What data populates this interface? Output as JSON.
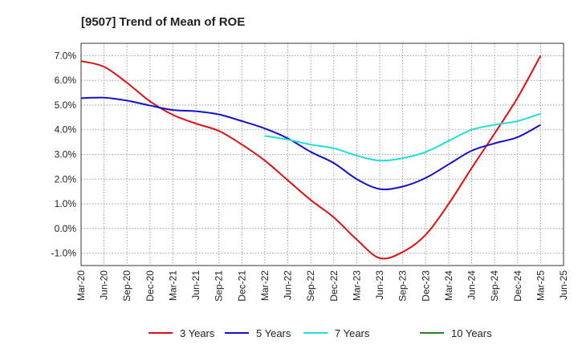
{
  "chart_data": {
    "type": "line",
    "title": "[9507]  Trend of Mean of ROE",
    "xlabel": "",
    "ylabel": "",
    "ylim": [
      -1.5,
      7.5
    ],
    "yticks": [
      -1.0,
      0.0,
      1.0,
      2.0,
      3.0,
      4.0,
      5.0,
      6.0,
      7.0
    ],
    "ytick_labels": [
      "-1.0%",
      "0.0%",
      "1.0%",
      "2.0%",
      "3.0%",
      "4.0%",
      "5.0%",
      "6.0%",
      "7.0%"
    ],
    "x_ticks": [
      "Mar-20",
      "Jun-20",
      "Sep-20",
      "Dec-20",
      "Mar-21",
      "Jun-21",
      "Sep-21",
      "Dec-21",
      "Mar-22",
      "Jun-22",
      "Sep-22",
      "Dec-22",
      "Mar-23",
      "Jun-23",
      "Sep-23",
      "Dec-23",
      "Mar-24",
      "Jun-24",
      "Sep-24",
      "Dec-24",
      "Mar-25",
      "Jun-25"
    ],
    "grid": true,
    "legend_position": "bottom",
    "series": [
      {
        "name": "3 Years",
        "color": "#dd1111",
        "start_index": 0,
        "values": [
          6.78,
          6.55,
          5.9,
          5.15,
          4.6,
          4.25,
          3.95,
          3.4,
          2.75,
          1.95,
          1.15,
          0.45,
          -0.45,
          -1.2,
          -0.95,
          -0.25,
          1.0,
          2.45,
          3.85,
          5.3,
          7.0
        ]
      },
      {
        "name": "5 Years",
        "color": "#1111cc",
        "start_index": 0,
        "values": [
          5.28,
          5.3,
          5.18,
          4.98,
          4.8,
          4.75,
          4.62,
          4.35,
          4.05,
          3.65,
          3.1,
          2.65,
          2.0,
          1.6,
          1.7,
          2.05,
          2.6,
          3.15,
          3.45,
          3.7,
          4.2
        ]
      },
      {
        "name": "7 Years",
        "color": "#22dddd",
        "start_index": 8,
        "values": [
          3.75,
          3.6,
          3.4,
          3.25,
          2.95,
          2.75,
          2.85,
          3.1,
          3.55,
          4.0,
          4.2,
          4.35,
          4.65
        ]
      },
      {
        "name": "10 Years",
        "color": "#228822",
        "start_index": 0,
        "values": []
      }
    ]
  }
}
